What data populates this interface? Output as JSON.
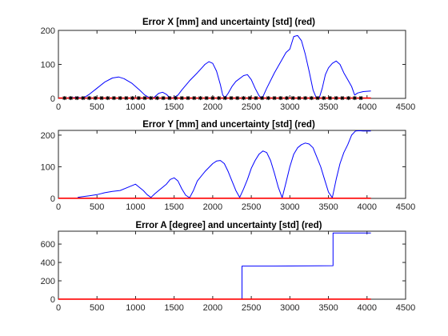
{
  "chart_data": [
    {
      "type": "line",
      "title": "Error X [mm] and uncertainty [std] (red)",
      "xlim": [
        0,
        4500
      ],
      "ylim": [
        0,
        200
      ],
      "xticks": [
        0,
        500,
        1000,
        1500,
        2000,
        2500,
        3000,
        3500,
        4000,
        4500
      ],
      "yticks": [
        0,
        100,
        200
      ],
      "series": [
        {
          "color": "#0000ff",
          "x": [
            120,
            250,
            300,
            350,
            400,
            500,
            600,
            700,
            780,
            850,
            950,
            1050,
            1120,
            1180,
            1220,
            1250,
            1300,
            1350,
            1400,
            1430,
            1470,
            1500,
            1550,
            1600,
            1700,
            1800,
            1900,
            1950,
            2000,
            2050,
            2100,
            2130,
            2160,
            2200,
            2250,
            2300,
            2400,
            2450,
            2500,
            2550,
            2600,
            2630,
            2650,
            2700,
            2800,
            2900,
            2950,
            3000,
            3050,
            3100,
            3150,
            3200,
            3250,
            3300,
            3340,
            3380,
            3420,
            3460,
            3500,
            3550,
            3600,
            3650,
            3700,
            3750,
            3800,
            3840,
            3880,
            3950,
            4050
          ],
          "y": [
            2,
            3,
            2,
            5,
            12,
            30,
            48,
            60,
            63,
            58,
            45,
            25,
            10,
            2,
            1,
            5,
            15,
            18,
            12,
            5,
            1,
            3,
            10,
            25,
            52,
            75,
            100,
            108,
            103,
            80,
            40,
            10,
            2,
            15,
            35,
            50,
            67,
            70,
            55,
            30,
            8,
            1,
            5,
            30,
            75,
            115,
            135,
            145,
            182,
            185,
            170,
            130,
            80,
            25,
            3,
            1,
            30,
            70,
            90,
            103,
            110,
            100,
            75,
            55,
            35,
            10,
            16,
            20,
            22
          ]
        },
        {
          "color": "#ff0000",
          "x": [
            0,
            4050
          ],
          "y": [
            1,
            1
          ]
        },
        {
          "color": "#000000",
          "marker": "star",
          "x": [
            80,
            160,
            240,
            320,
            400,
            480,
            560,
            640,
            720,
            800,
            880,
            960,
            1040,
            1120,
            1200,
            1280,
            1360,
            1440,
            1520,
            1600,
            1680,
            1760,
            1840,
            1920,
            2000,
            2080,
            2160,
            2240,
            2320,
            2400,
            2480,
            2560,
            2640,
            2720,
            2800,
            2880,
            2960,
            3040,
            3120,
            3200,
            3280,
            3360,
            3440,
            3520,
            3600,
            3680,
            3760,
            3840,
            3920
          ],
          "y": [
            1,
            1,
            1,
            1,
            1,
            1,
            1,
            1,
            1,
            1,
            1,
            1,
            1,
            1,
            1,
            1,
            1,
            1,
            1,
            1,
            1,
            1,
            1,
            1,
            1,
            1,
            1,
            1,
            1,
            1,
            1,
            1,
            1,
            1,
            1,
            1,
            1,
            1,
            1,
            1,
            1,
            1,
            1,
            1,
            1,
            1,
            1,
            1,
            1
          ]
        }
      ]
    },
    {
      "type": "line",
      "title": "Error Y [mm] and uncertainty [std] (red)",
      "xlim": [
        0,
        4500
      ],
      "ylim": [
        0,
        215
      ],
      "xticks": [
        0,
        500,
        1000,
        1500,
        2000,
        2500,
        3000,
        3500,
        4000,
        4500
      ],
      "yticks": [
        0,
        100,
        200
      ],
      "series": [
        {
          "color": "#0000ff",
          "x": [
            250,
            300,
            400,
            500,
            600,
            700,
            800,
            900,
            950,
            1000,
            1050,
            1100,
            1150,
            1200,
            1250,
            1300,
            1400,
            1450,
            1500,
            1550,
            1600,
            1650,
            1700,
            1750,
            1800,
            1900,
            2000,
            2050,
            2100,
            2150,
            2200,
            2250,
            2300,
            2350,
            2400,
            2450,
            2500,
            2550,
            2600,
            2650,
            2700,
            2750,
            2800,
            2850,
            2900,
            2950,
            3000,
            3050,
            3100,
            3150,
            3200,
            3250,
            3300,
            3350,
            3400,
            3450,
            3500,
            3550,
            3600,
            3650,
            3700,
            3750,
            3800,
            3850,
            3900,
            3950,
            4000,
            4050
          ],
          "y": [
            3,
            5,
            8,
            12,
            18,
            22,
            25,
            35,
            40,
            45,
            35,
            25,
            12,
            3,
            15,
            25,
            45,
            60,
            65,
            55,
            30,
            10,
            2,
            25,
            55,
            85,
            110,
            118,
            120,
            110,
            85,
            55,
            25,
            3,
            30,
            60,
            95,
            120,
            140,
            150,
            145,
            120,
            80,
            35,
            2,
            50,
            100,
            140,
            160,
            170,
            175,
            172,
            160,
            130,
            100,
            60,
            20,
            2,
            60,
            110,
            145,
            170,
            200,
            213,
            214,
            213,
            213,
            213
          ]
        },
        {
          "color": "#ff0000",
          "x": [
            0,
            4050
          ],
          "y": [
            0.5,
            0.5
          ]
        }
      ]
    },
    {
      "type": "line",
      "title": "Error A [degree] and uncertainty [std] (red)",
      "xlim": [
        0,
        4500
      ],
      "ylim": [
        0,
        740
      ],
      "xticks": [
        0,
        500,
        1000,
        1500,
        2000,
        2500,
        3000,
        3500,
        4000,
        4500
      ],
      "yticks": [
        0,
        200,
        400,
        600
      ],
      "series": [
        {
          "color": "#0000ff",
          "x": [
            0,
            2380,
            2380,
            2800,
            3200,
            3560,
            3560,
            4050
          ],
          "y": [
            0,
            0,
            360,
            360,
            362,
            365,
            720,
            720
          ]
        },
        {
          "color": "#ff0000",
          "x": [
            0,
            4050
          ],
          "y": [
            1,
            1
          ]
        }
      ]
    }
  ]
}
